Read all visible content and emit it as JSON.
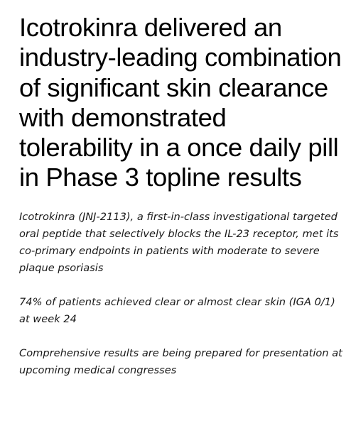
{
  "headline": "Icotrokinra delivered an industry-leading combination of significant skin clearance with demonstrated tolerability in a once daily pill in Phase 3 topline results",
  "subheads": [
    "Icotrokinra (JNJ-2113), a first-in-class investigational targeted oral peptide that selectively blocks the IL-23 receptor, met its co-primary endpoints in patients with moderate to severe plaque psoriasis",
    "74% of patients achieved clear or almost clear skin (IGA 0/1) at week 24",
    "Comprehensive results are being prepared for presentation at upcoming medical congresses"
  ]
}
